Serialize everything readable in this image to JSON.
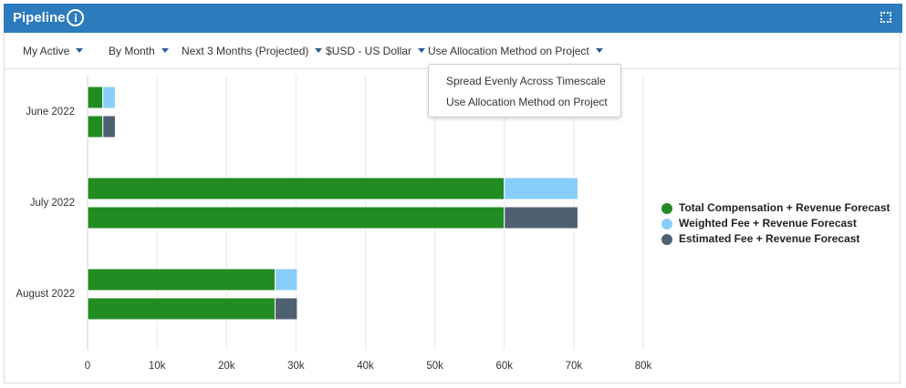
{
  "header": {
    "title": "Pipeline"
  },
  "filters": [
    "My Active",
    "By Month",
    "Next 3 Months (Projected)",
    "$USD - US Dollar",
    "Use Allocation Method on Project"
  ],
  "dropdown": {
    "items": [
      "Spread Evenly Across Timescale",
      "Use Allocation Method on Project"
    ]
  },
  "chart_data": {
    "type": "bar",
    "orientation": "horizontal",
    "categories": [
      "June 2022",
      "July 2022",
      "August 2022"
    ],
    "series": [
      {
        "name": "Total Compensation + Revenue Forecast",
        "color": "#228b22",
        "values": [
          2200,
          60000,
          27000
        ]
      },
      {
        "name": "Weighted Fee + Revenue Forecast",
        "color": "#87cefa",
        "values": [
          1800,
          10600,
          3200
        ]
      },
      {
        "name": "Estimated Fee + Revenue Forecast",
        "color": "#4f6071",
        "values": [
          1800,
          10600,
          3200
        ]
      }
    ],
    "xlim": [
      0,
      80000
    ],
    "xticks": [
      0,
      {
        "value": 10000,
        "label": "10k"
      },
      {
        "value": 20000,
        "label": "20k"
      },
      {
        "value": 30000,
        "label": "30k"
      },
      {
        "value": 40000,
        "label": "40k"
      },
      {
        "value": 50000,
        "label": "50k"
      },
      {
        "value": 60000,
        "label": "60k"
      },
      {
        "value": 70000,
        "label": "70k"
      },
      {
        "value": 80000,
        "label": "80k"
      }
    ],
    "grid": true,
    "legend": "right"
  }
}
